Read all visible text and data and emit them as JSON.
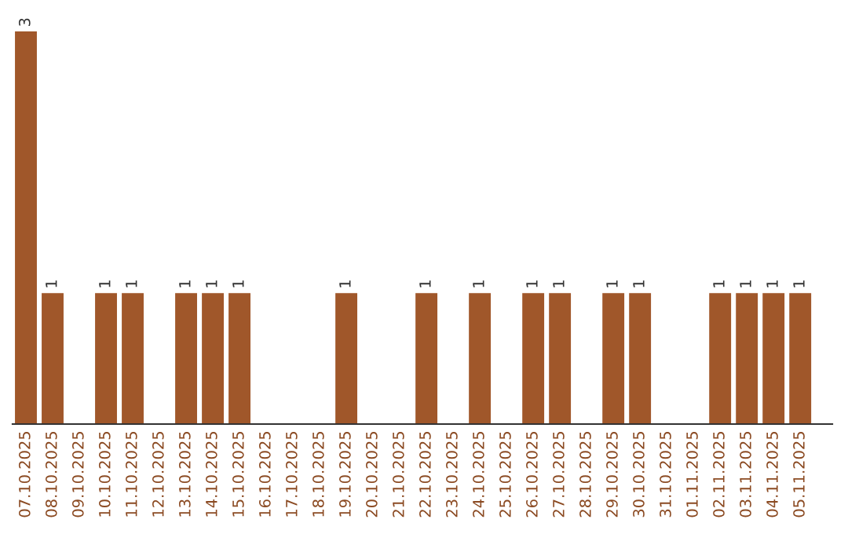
{
  "chart_data": {
    "type": "bar",
    "categories": [
      "07.10.2025",
      "08.10.2025",
      "09.10.2025",
      "10.10.2025",
      "11.10.2025",
      "12.10.2025",
      "13.10.2025",
      "14.10.2025",
      "15.10.2025",
      "16.10.2025",
      "17.10.2025",
      "18.10.2025",
      "19.10.2025",
      "20.10.2025",
      "21.10.2025",
      "22.10.2025",
      "23.10.2025",
      "24.10.2025",
      "25.10.2025",
      "26.10.2025",
      "27.10.2025",
      "28.10.2025",
      "29.10.2025",
      "30.10.2025",
      "31.10.2025",
      "01.11.2025",
      "02.11.2025",
      "03.11.2025",
      "04.11.2025",
      "05.11.2025"
    ],
    "values": [
      3,
      1,
      0,
      1,
      1,
      0,
      1,
      1,
      1,
      0,
      0,
      0,
      1,
      0,
      0,
      1,
      0,
      1,
      0,
      1,
      1,
      0,
      1,
      1,
      0,
      0,
      1,
      1,
      1,
      1
    ],
    "value_labels": [
      "3",
      "1",
      null,
      "1",
      "1",
      null,
      "1",
      "1",
      "1",
      null,
      null,
      null,
      "1",
      null,
      null,
      "1",
      null,
      "1",
      null,
      "1",
      "1",
      null,
      "1",
      "1",
      null,
      null,
      "1",
      "1",
      "1",
      "1"
    ],
    "color": "#a0572a",
    "tick_labels": "x",
    "grid": false,
    "legend": false
  }
}
